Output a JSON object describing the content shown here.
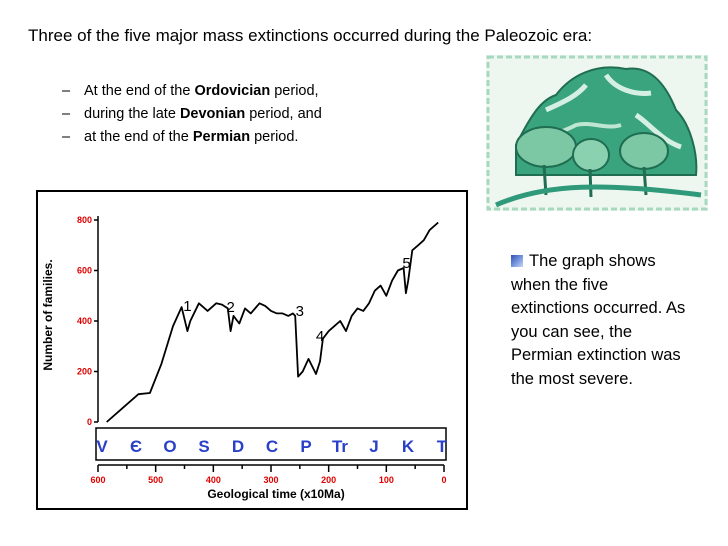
{
  "slide": {
    "title": "Three of the five major mass extinctions occurred during the Paleozoic era:",
    "bullets": [
      {
        "dash": "–",
        "pre": "At the end of the ",
        "bold": "Ordovician",
        "post": " period,"
      },
      {
        "dash": "–",
        "pre": "during the late ",
        "bold": "Devonian",
        "post": " period, and"
      },
      {
        "dash": "–",
        "pre": "at the end of the ",
        "bold": "Permian",
        "post": " period."
      }
    ],
    "note": {
      "icon": "blue-gradient-square-bullet-icon",
      "text": "The graph shows when the five extinctions occurred.  As you can see, the Permian extinction was the most severe."
    },
    "clipart": {
      "icon": "landscape-clipart-mountains-trees",
      "color": "#2f9a7a"
    }
  },
  "chart_data": {
    "type": "line",
    "xlabel": "Geological time (x10Ma)",
    "ylabel": "Number of families.",
    "x_ticks": [
      "600",
      "500",
      "400",
      "300",
      "200",
      "100",
      "0"
    ],
    "y_ticks": [
      "0",
      "200",
      "400",
      "600",
      "800"
    ],
    "xlim": [
      600,
      0
    ],
    "ylim": [
      0,
      800
    ],
    "periods": [
      "V",
      "Є",
      "O",
      "S",
      "D",
      "C",
      "P",
      "Tr",
      "J",
      "K",
      "T"
    ],
    "annotations": [
      {
        "label": "1",
        "x": 445,
        "y": 440
      },
      {
        "label": "2",
        "x": 370,
        "y": 435
      },
      {
        "label": "3",
        "x": 250,
        "y": 420
      },
      {
        "label": "4",
        "x": 215,
        "y": 320
      },
      {
        "label": "5",
        "x": 65,
        "y": 610
      }
    ],
    "series": [
      {
        "x": [
          585,
          555,
          530,
          510,
          490,
          470,
          455,
          445,
          440,
          425,
          410,
          395,
          385,
          375,
          370,
          365,
          355,
          345,
          335,
          320,
          310,
          300,
          290,
          280,
          270,
          262,
          258,
          253,
          245,
          235,
          222,
          215,
          210,
          200,
          190,
          180,
          170,
          160,
          150,
          140,
          130,
          120,
          110,
          100,
          90,
          80,
          70,
          66,
          62,
          55,
          45,
          35,
          25,
          10
        ],
        "y": [
          0,
          60,
          110,
          115,
          230,
          380,
          455,
          360,
          400,
          470,
          440,
          470,
          465,
          450,
          360,
          420,
          390,
          450,
          430,
          470,
          460,
          440,
          430,
          430,
          420,
          430,
          420,
          180,
          200,
          250,
          190,
          240,
          330,
          360,
          380,
          400,
          360,
          420,
          450,
          440,
          470,
          520,
          540,
          500,
          560,
          600,
          610,
          510,
          560,
          680,
          700,
          720,
          760,
          790
        ]
      }
    ],
    "grid": false
  }
}
